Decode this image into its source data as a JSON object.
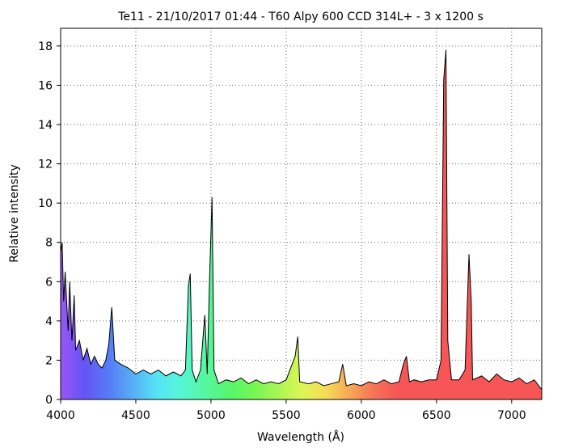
{
  "chart_data": {
    "type": "spectrum",
    "title": "Te11 - 21/10/2017 01:44 - T60 Alpy 600 CCD 314L+ - 3 x 1200 s",
    "x_label": "Wavelength (Å)",
    "y_label": "Relative intensity",
    "x": [
      4000,
      4010,
      4020,
      4030,
      4050,
      4060,
      4075,
      4090,
      4100,
      4125,
      4150,
      4175,
      4200,
      4225,
      4250,
      4275,
      4300,
      4320,
      4340,
      4360,
      4400,
      4450,
      4500,
      4550,
      4600,
      4650,
      4700,
      4750,
      4800,
      4830,
      4850,
      4862,
      4875,
      4900,
      4930,
      4959,
      4975,
      4990,
      5007,
      5020,
      5050,
      5100,
      5150,
      5200,
      5250,
      5300,
      5350,
      5400,
      5450,
      5500,
      5540,
      5560,
      5577,
      5590,
      5650,
      5700,
      5750,
      5800,
      5850,
      5876,
      5900,
      5950,
      6000,
      6050,
      6100,
      6150,
      6200,
      6250,
      6280,
      6300,
      6320,
      6350,
      6400,
      6450,
      6500,
      6530,
      6548,
      6563,
      6575,
      6600,
      6650,
      6690,
      6716,
      6731,
      6740,
      6800,
      6850,
      6900,
      6950,
      7000,
      7050,
      7100,
      7150,
      7200
    ],
    "series": [
      {
        "name": "Te11",
        "color": "#000000",
        "values": [
          7.5,
          8,
          5,
          6.5,
          3.5,
          6,
          3,
          5.3,
          2.5,
          3,
          2,
          2.6,
          1.8,
          2.2,
          1.8,
          1.6,
          2,
          2.8,
          4.7,
          2,
          1.8,
          1.6,
          1.3,
          1.5,
          1.3,
          1.5,
          1.2,
          1.4,
          1.2,
          1.5,
          5.8,
          6.4,
          1.5,
          0.9,
          1.5,
          4.3,
          1.3,
          6,
          10.3,
          1.5,
          0.8,
          1,
          0.9,
          1.1,
          0.8,
          1,
          0.8,
          0.9,
          0.8,
          1,
          1.8,
          2.2,
          3.2,
          0.9,
          0.8,
          0.9,
          0.7,
          0.8,
          0.9,
          1.8,
          0.7,
          0.8,
          0.7,
          0.9,
          0.8,
          1,
          0.8,
          0.9,
          1.8,
          2.2,
          0.9,
          1,
          0.9,
          1,
          1,
          2,
          16.3,
          17.8,
          3,
          1,
          1,
          1.5,
          7.4,
          5,
          1,
          1.2,
          0.9,
          1.3,
          1,
          0.9,
          1.1,
          0.8,
          1,
          0.5
        ]
      }
    ],
    "xlim": [
      4000,
      7200
    ],
    "ylim": [
      0,
      18.9
    ],
    "xticks": [
      4000,
      4500,
      5000,
      5500,
      6000,
      6500,
      7000
    ],
    "yticks": [
      0,
      2,
      4,
      6,
      8,
      10,
      12,
      14,
      16,
      18
    ],
    "grid": true
  }
}
